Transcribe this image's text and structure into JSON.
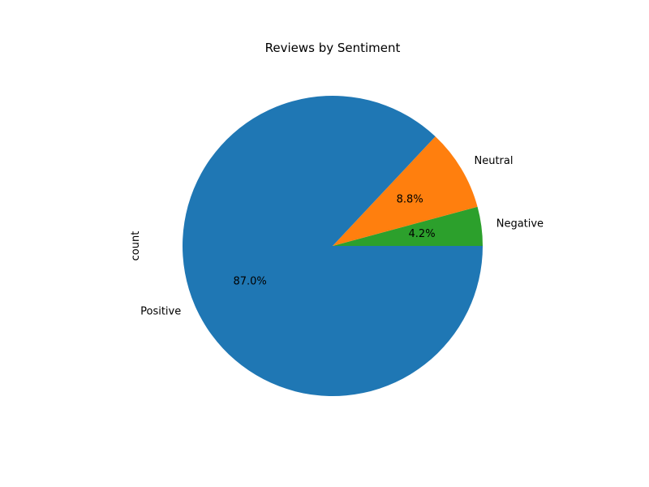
{
  "chart_data": {
    "type": "pie",
    "title": "Reviews by Sentiment",
    "ylabel": "count",
    "slices": [
      {
        "label": "Negative",
        "percent": 4.2,
        "pct_label": "4.2%",
        "color": "#2ca02c"
      },
      {
        "label": "Neutral",
        "percent": 8.8,
        "pct_label": "8.8%",
        "color": "#ff7f0e"
      },
      {
        "label": "Positive",
        "percent": 87.0,
        "pct_label": "87.0%",
        "color": "#1f77b4"
      }
    ]
  }
}
